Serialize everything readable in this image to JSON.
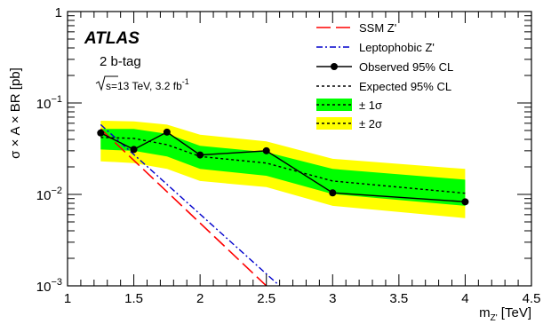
{
  "chart_data": {
    "type": "line",
    "title": "",
    "xlabel": {
      "main": "m",
      "sub": "Z'",
      "unit": " [TeV]"
    },
    "ylabel": "σ × A × BR [pb]",
    "xlim": [
      1,
      4.5
    ],
    "ylim": [
      0.001,
      1
    ],
    "yscale": "log",
    "x_ticks": [
      "1",
      "1.5",
      "2",
      "2.5",
      "3",
      "3.5",
      "4",
      "4.5"
    ],
    "x_tick_values": [
      1,
      1.5,
      2,
      2.5,
      3,
      3.5,
      4,
      4.5
    ],
    "y_ticks": [
      {
        "value": 1,
        "base": "1",
        "exp": ""
      },
      {
        "value": 0.1,
        "base": "10",
        "exp": "−1"
      },
      {
        "value": 0.01,
        "base": "10",
        "exp": "−2"
      },
      {
        "value": 0.001,
        "base": "10",
        "exp": "−3"
      }
    ],
    "grid": false,
    "legend_position": "top-right",
    "colors": {
      "ssm": "#ff0000",
      "lepto": "#0000cc",
      "observed": "#000000",
      "expected": "#000000",
      "band1": "#00ff00",
      "band2": "#ffff00"
    },
    "x": [
      1.25,
      1.5,
      1.75,
      2.0,
      2.5,
      3.0,
      4.0
    ],
    "series": [
      {
        "name": "SSM Z'",
        "style": "long-dash",
        "x": [
          1.25,
          2.5
        ],
        "values": [
          0.052,
          0.001
        ]
      },
      {
        "name": "Leptophobic Z'",
        "style": "dash-dot",
        "x": [
          1.25,
          2.6
        ],
        "values": [
          0.058,
          0.001
        ]
      },
      {
        "name": "Observed 95% CL",
        "style": "solid-markers",
        "x": [
          1.25,
          1.5,
          1.75,
          2.0,
          2.5,
          3.0,
          4.0
        ],
        "values": [
          0.047,
          0.031,
          0.048,
          0.027,
          0.03,
          0.0104,
          0.0083
        ]
      },
      {
        "name": "Expected 95% CL",
        "style": "dotted",
        "x": [
          1.25,
          1.5,
          1.75,
          2.0,
          2.5,
          3.0,
          4.0
        ],
        "values": [
          0.042,
          0.041,
          0.035,
          0.026,
          0.022,
          0.014,
          0.0103
        ]
      },
      {
        "name": "± 1σ",
        "style": "band",
        "x": [
          1.25,
          1.5,
          1.75,
          2.0,
          2.5,
          3.0,
          4.0
        ],
        "low": [
          0.031,
          0.03,
          0.026,
          0.019,
          0.016,
          0.0101,
          0.0075
        ],
        "high": [
          0.052,
          0.052,
          0.046,
          0.034,
          0.029,
          0.019,
          0.0145
        ]
      },
      {
        "name": "± 2σ",
        "style": "band",
        "x": [
          1.25,
          1.5,
          1.75,
          2.0,
          2.5,
          3.0,
          4.0
        ],
        "low": [
          0.023,
          0.022,
          0.019,
          0.014,
          0.012,
          0.0075,
          0.0055
        ]
      },
      {
        "name": "± 2σ",
        "style": "band-high",
        "x": [
          1.25,
          1.5,
          1.75,
          2.0,
          2.5,
          3.0,
          4.0
        ],
        "high": [
          0.064,
          0.063,
          0.058,
          0.045,
          0.038,
          0.0245,
          0.019
        ]
      }
    ],
    "annotations": {
      "atlas": "ATLAS",
      "category": "2 b-tag",
      "sqrt_s": "s=13 TeV,  3.2 fb",
      "lumi_exp": "-1"
    },
    "legend": [
      {
        "label": "SSM Z'",
        "key": "ssm"
      },
      {
        "label": "Leptophobic Z'",
        "key": "lepto"
      },
      {
        "label": "Observed 95% CL",
        "key": "observed"
      },
      {
        "label": "Expected 95% CL",
        "key": "expected"
      },
      {
        "label": "± 1σ",
        "key": "band1"
      },
      {
        "label": "± 2σ",
        "key": "band2"
      }
    ]
  }
}
